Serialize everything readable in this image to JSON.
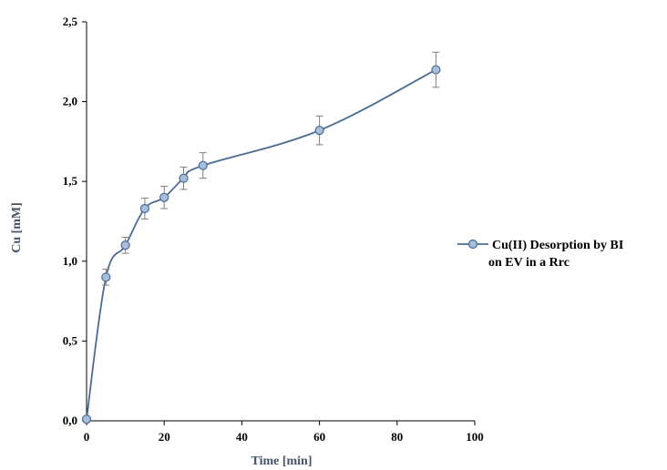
{
  "colors": {
    "series_line": "#4a6b94",
    "marker_fill": "#a7bedb",
    "marker_stroke": "#4a6b94",
    "error_bar": "#7f7f7f",
    "axis": "#000000",
    "axis_title": "#44546a"
  },
  "chart_data": {
    "type": "line",
    "title": "",
    "xlabel": "Time [min]",
    "ylabel": "Cu [mM]",
    "xlim": [
      0,
      100
    ],
    "ylim": [
      0,
      2.5
    ],
    "x_ticks": [
      "0",
      "20",
      "40",
      "60",
      "80",
      "100"
    ],
    "y_ticks": [
      "0,0",
      "0,5",
      "1,0",
      "1,5",
      "2,0",
      "2,5"
    ],
    "grid": false,
    "legend": "right",
    "smooth": true,
    "series": [
      {
        "name": "Cu(II) Desorption by BI on EV in a Rrc",
        "legend_lines": [
          "Cu(II) Desorption by BI",
          "on EV in a Rrc"
        ],
        "x": [
          0,
          5,
          10,
          15,
          20,
          25,
          30,
          60,
          90
        ],
        "y": [
          0.01,
          0.9,
          1.1,
          1.33,
          1.4,
          1.52,
          1.6,
          1.82,
          2.2
        ],
        "error": [
          0.0,
          0.05,
          0.05,
          0.065,
          0.07,
          0.07,
          0.08,
          0.09,
          0.11
        ]
      }
    ]
  }
}
